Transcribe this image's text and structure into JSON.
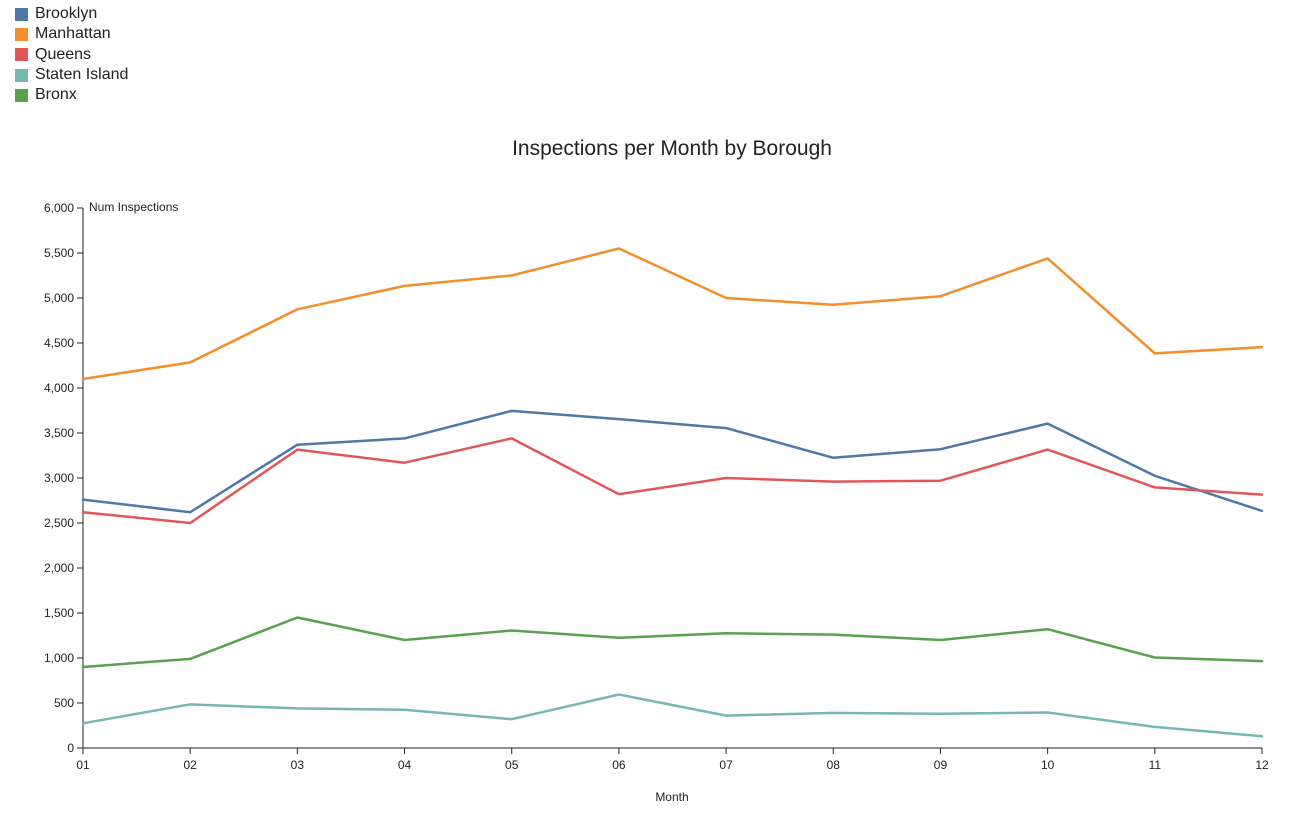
{
  "chart_data": {
    "type": "line",
    "title": "Inspections per Month by Borough",
    "xlabel": "Month",
    "ylabel": "Num Inspections",
    "categories": [
      "01",
      "02",
      "03",
      "04",
      "05",
      "06",
      "07",
      "08",
      "09",
      "10",
      "11",
      "12"
    ],
    "ylim": [
      0,
      6000
    ],
    "yticks": [
      0,
      500,
      1000,
      1500,
      2000,
      2500,
      3000,
      3500,
      4000,
      4500,
      5000,
      5500,
      6000
    ],
    "ytick_labels": [
      "0",
      "500",
      "1,000",
      "1,500",
      "2,000",
      "2,500",
      "3,000",
      "3,500",
      "4,000",
      "4,500",
      "5,000",
      "5,500",
      "6,000"
    ],
    "legend_position": "top-left",
    "grid": false,
    "series": [
      {
        "name": "Brooklyn",
        "color": "#4e79a7",
        "values": [
          2760,
          2620,
          3370,
          3440,
          3745,
          3655,
          3555,
          3225,
          3320,
          3605,
          3025,
          2635
        ]
      },
      {
        "name": "Manhattan",
        "color": "#f28e2b",
        "values": [
          4100,
          4285,
          4875,
          5135,
          5250,
          5550,
          5000,
          4925,
          5020,
          5440,
          4385,
          4455
        ]
      },
      {
        "name": "Queens",
        "color": "#e15759",
        "values": [
          2620,
          2500,
          3315,
          3170,
          3440,
          2820,
          3000,
          2960,
          2970,
          3315,
          2895,
          2815
        ]
      },
      {
        "name": "Staten Island",
        "color": "#76b7b2",
        "values": [
          275,
          485,
          440,
          425,
          320,
          595,
          360,
          390,
          380,
          395,
          235,
          130
        ]
      },
      {
        "name": "Bronx",
        "color": "#59a14f",
        "values": [
          900,
          990,
          1450,
          1200,
          1305,
          1225,
          1275,
          1260,
          1200,
          1320,
          1005,
          965
        ]
      }
    ]
  }
}
